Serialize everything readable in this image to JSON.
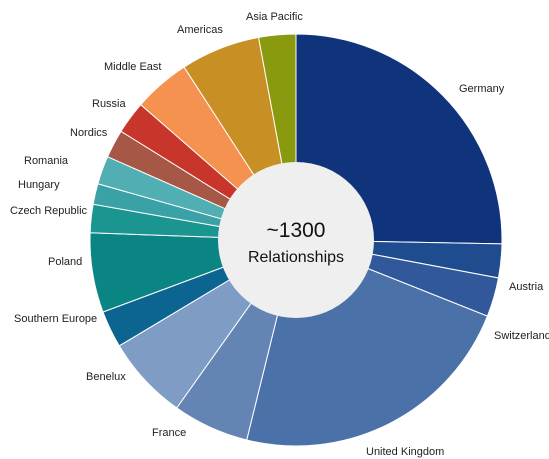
{
  "chart_data": {
    "type": "pie",
    "center_text": {
      "value": "~1300",
      "label": "Relationships"
    },
    "categories": [
      "Germany",
      "Austria",
      "Switzerland",
      "United Kingdom",
      "France",
      "Benelux",
      "Southern Europe",
      "Poland",
      "Czech Republic",
      "Hungary",
      "Romania",
      "Nordics",
      "Russia",
      "Middle East",
      "Americas",
      "Asia Pacific"
    ],
    "values": [
      296,
      31,
      36,
      267,
      70,
      77,
      34,
      73,
      26,
      19,
      26,
      26,
      30,
      52,
      73,
      34
    ],
    "colors": [
      "#0f347c",
      "#1f4b8f",
      "#30589a",
      "#4a72a8",
      "#6485b4",
      "#7f9cc4",
      "#0c6591",
      "#0b8584",
      "#1b9590",
      "#3aa2a6",
      "#51aeb3",
      "#a75745",
      "#c8352a",
      "#f59250",
      "#c78f24",
      "#8a9a0e"
    ]
  }
}
